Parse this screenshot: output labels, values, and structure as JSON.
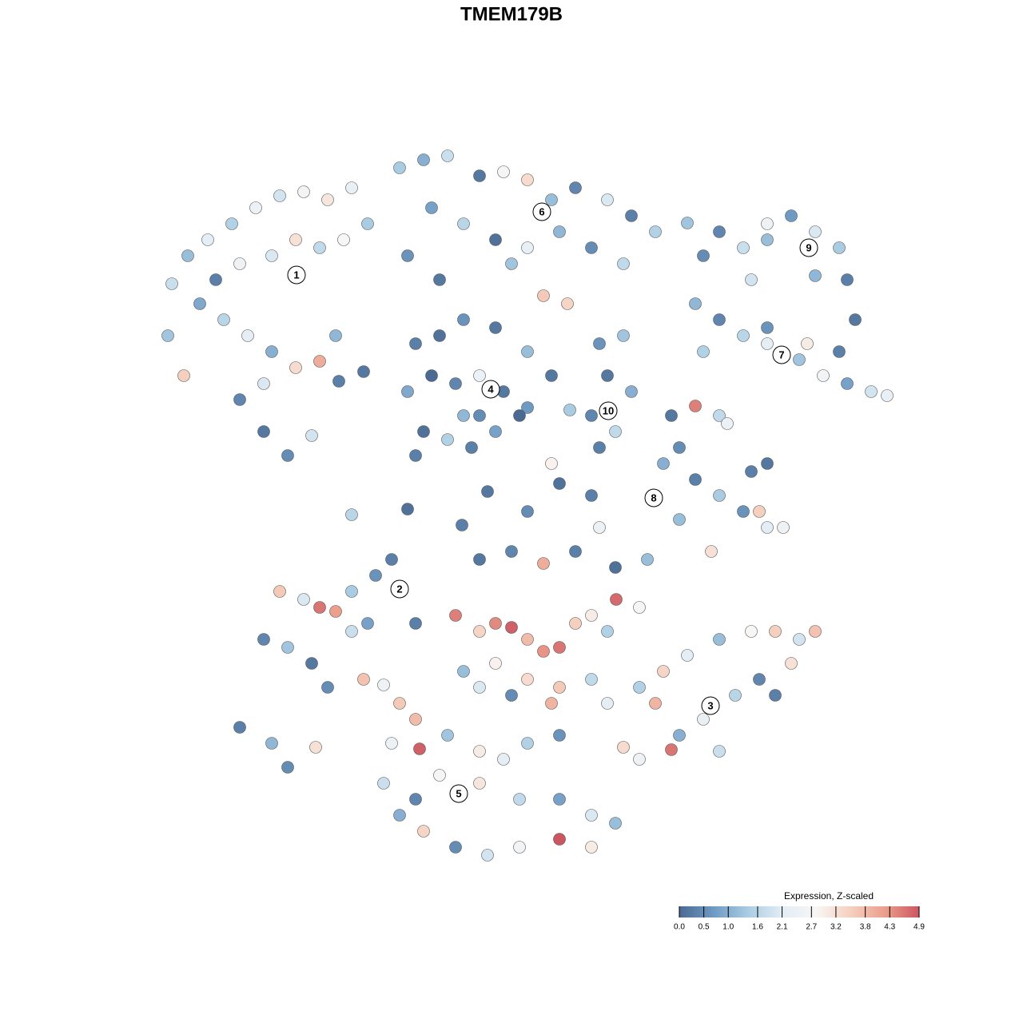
{
  "chart_data": {
    "type": "scatter",
    "title": "TMEM179B",
    "points": [
      {
        "x": -42.5,
        "y": 28.5,
        "value": 1.8
      },
      {
        "x": -40.5,
        "y": 32,
        "value": 1.2
      },
      {
        "x": -38,
        "y": 34,
        "value": 2.2
      },
      {
        "x": -35,
        "y": 36,
        "value": 1.5
      },
      {
        "x": -32,
        "y": 38,
        "value": 2.4
      },
      {
        "x": -29,
        "y": 39.5,
        "value": 1.9
      },
      {
        "x": -26,
        "y": 40,
        "value": 2.6
      },
      {
        "x": -23,
        "y": 39,
        "value": 3.1
      },
      {
        "x": -20,
        "y": 40.5,
        "value": 2.3
      },
      {
        "x": -34,
        "y": 31,
        "value": 2.5
      },
      {
        "x": -30,
        "y": 32,
        "value": 2.0
      },
      {
        "x": -27,
        "y": 34,
        "value": 3.2
      },
      {
        "x": -24,
        "y": 33,
        "value": 1.7
      },
      {
        "x": -21,
        "y": 34,
        "value": 2.8
      },
      {
        "x": -18,
        "y": 36,
        "value": 1.4
      },
      {
        "x": -39,
        "y": 26,
        "value": 0.9
      },
      {
        "x": -36,
        "y": 24,
        "value": 1.6
      },
      {
        "x": -33,
        "y": 22,
        "value": 2.2
      },
      {
        "x": -30,
        "y": 20,
        "value": 1.0
      },
      {
        "x": -27,
        "y": 18,
        "value": 3.3
      },
      {
        "x": -24,
        "y": 18.8,
        "value": 4.0
      },
      {
        "x": -31,
        "y": 16,
        "value": 2.0
      },
      {
        "x": -34,
        "y": 14,
        "value": 0.4
      },
      {
        "x": -31,
        "y": 10,
        "value": 0.2
      },
      {
        "x": -28,
        "y": 7,
        "value": 0.5
      },
      {
        "x": -25,
        "y": 9.5,
        "value": 1.9
      },
      {
        "x": -41,
        "y": 17,
        "value": 3.5
      },
      {
        "x": -43,
        "y": 22,
        "value": 1.3
      },
      {
        "x": -37,
        "y": 29,
        "value": 0.3
      },
      {
        "x": -22,
        "y": 22,
        "value": 1.1
      },
      {
        "x": -14,
        "y": 43,
        "value": 1.4
      },
      {
        "x": -11,
        "y": 44,
        "value": 1.0
      },
      {
        "x": -8,
        "y": 44.5,
        "value": 1.8
      },
      {
        "x": -4,
        "y": 42,
        "value": 0.2
      },
      {
        "x": -1,
        "y": 42.5,
        "value": 2.7
      },
      {
        "x": 2,
        "y": 41.5,
        "value": 3.3
      },
      {
        "x": 5,
        "y": 39,
        "value": 1.2
      },
      {
        "x": 8,
        "y": 40.5,
        "value": 0.4
      },
      {
        "x": 12,
        "y": 39,
        "value": 2.0
      },
      {
        "x": 15,
        "y": 37,
        "value": 0.3
      },
      {
        "x": 18,
        "y": 35,
        "value": 1.5
      },
      {
        "x": -10,
        "y": 38,
        "value": 0.8
      },
      {
        "x": -6,
        "y": 36,
        "value": 1.6
      },
      {
        "x": -2,
        "y": 34,
        "value": 0.1
      },
      {
        "x": 2,
        "y": 33,
        "value": 2.3
      },
      {
        "x": 6,
        "y": 35,
        "value": 1.1
      },
      {
        "x": 10,
        "y": 33,
        "value": 0.5
      },
      {
        "x": 14,
        "y": 31,
        "value": 1.7
      },
      {
        "x": -13,
        "y": 32,
        "value": 0.6
      },
      {
        "x": -9,
        "y": 29,
        "value": 0.2
      },
      {
        "x": 0,
        "y": 31,
        "value": 1.3
      },
      {
        "x": 7,
        "y": 26,
        "value": 3.4
      },
      {
        "x": 4,
        "y": 27,
        "value": 3.6
      },
      {
        "x": -12,
        "y": 21,
        "value": 0.3
      },
      {
        "x": -9,
        "y": 22,
        "value": 0.1
      },
      {
        "x": -6,
        "y": 24,
        "value": 0.6
      },
      {
        "x": -2,
        "y": 23,
        "value": 0.2
      },
      {
        "x": 2,
        "y": 20,
        "value": 1.2
      },
      {
        "x": -13,
        "y": 15,
        "value": 0.9
      },
      {
        "x": -10,
        "y": 17,
        "value": 0.0
      },
      {
        "x": -7,
        "y": 16,
        "value": 0.4
      },
      {
        "x": -4,
        "y": 17,
        "value": 2.4
      },
      {
        "x": -1,
        "y": 15,
        "value": 0.2
      },
      {
        "x": 2,
        "y": 13,
        "value": 0.7
      },
      {
        "x": -11,
        "y": 10,
        "value": 0.1
      },
      {
        "x": -8,
        "y": 9,
        "value": 1.5
      },
      {
        "x": -5,
        "y": 8,
        "value": 0.3
      },
      {
        "x": -2,
        "y": 10,
        "value": 0.8
      },
      {
        "x": 1,
        "y": 12,
        "value": 0.0
      },
      {
        "x": -4,
        "y": 12,
        "value": 0.5
      },
      {
        "x": -12,
        "y": 7,
        "value": 0.3
      },
      {
        "x": -6,
        "y": 12,
        "value": 1.1
      },
      {
        "x": 5,
        "y": 17,
        "value": 0.2
      },
      {
        "x": 11,
        "y": 21,
        "value": 0.6
      },
      {
        "x": 14,
        "y": 22,
        "value": 1.3
      },
      {
        "x": 12,
        "y": 17,
        "value": 0.2
      },
      {
        "x": 15,
        "y": 15,
        "value": 1.0
      },
      {
        "x": 10,
        "y": 12,
        "value": 0.4
      },
      {
        "x": 13,
        "y": 10,
        "value": 1.7
      },
      {
        "x": 11,
        "y": 8,
        "value": 0.3
      },
      {
        "x": 7.3,
        "y": 12.7,
        "value": 1.4
      },
      {
        "x": 26,
        "y": 35,
        "value": 0.4
      },
      {
        "x": 29,
        "y": 33,
        "value": 1.8
      },
      {
        "x": 32,
        "y": 34,
        "value": 1.2
      },
      {
        "x": 35,
        "y": 37,
        "value": 0.7
      },
      {
        "x": 38,
        "y": 35,
        "value": 2.0
      },
      {
        "x": 41,
        "y": 33,
        "value": 1.4
      },
      {
        "x": 42,
        "y": 29,
        "value": 0.3
      },
      {
        "x": 38,
        "y": 29.5,
        "value": 1.1
      },
      {
        "x": 32,
        "y": 36,
        "value": 2.5
      },
      {
        "x": 24,
        "y": 32,
        "value": 0.5
      },
      {
        "x": 43,
        "y": 24,
        "value": 0.2
      },
      {
        "x": 30,
        "y": 29,
        "value": 1.9
      },
      {
        "x": 23,
        "y": 26,
        "value": 1.1
      },
      {
        "x": 26,
        "y": 24,
        "value": 0.4
      },
      {
        "x": 29,
        "y": 22,
        "value": 1.6
      },
      {
        "x": 32,
        "y": 21,
        "value": 2.2
      },
      {
        "x": 36,
        "y": 19,
        "value": 1.3
      },
      {
        "x": 39,
        "y": 17,
        "value": 2.6
      },
      {
        "x": 42,
        "y": 16,
        "value": 0.8
      },
      {
        "x": 45,
        "y": 15,
        "value": 1.9
      },
      {
        "x": 47,
        "y": 14.5,
        "value": 2.3
      },
      {
        "x": 37,
        "y": 21,
        "value": 3.0
      },
      {
        "x": 32,
        "y": 23,
        "value": 0.6
      },
      {
        "x": 24,
        "y": 20,
        "value": 1.5
      },
      {
        "x": 41,
        "y": 20,
        "value": 0.3
      },
      {
        "x": 20,
        "y": 12,
        "value": 0.2
      },
      {
        "x": 23,
        "y": 13.2,
        "value": 4.5
      },
      {
        "x": 26,
        "y": 12,
        "value": 1.7
      },
      {
        "x": 27,
        "y": 11,
        "value": 2.4
      },
      {
        "x": 21,
        "y": 8,
        "value": 0.5
      },
      {
        "x": 19,
        "y": 6,
        "value": 1.0
      },
      {
        "x": 23,
        "y": 4,
        "value": 0.3
      },
      {
        "x": 26,
        "y": 2,
        "value": 1.4
      },
      {
        "x": 29,
        "y": 0,
        "value": 0.6
      },
      {
        "x": 32,
        "y": -2,
        "value": 2.1
      },
      {
        "x": 31,
        "y": 0,
        "value": 3.5
      },
      {
        "x": 25,
        "y": -5,
        "value": 3.2
      },
      {
        "x": 30,
        "y": 5,
        "value": 0.3
      },
      {
        "x": 32,
        "y": 6,
        "value": 0.2
      },
      {
        "x": 21,
        "y": -1,
        "value": 1.2
      },
      {
        "x": 34,
        "y": -2,
        "value": 2.5
      },
      {
        "x": -29,
        "y": -10,
        "value": 3.6
      },
      {
        "x": -26,
        "y": -11,
        "value": 2.0
      },
      {
        "x": -24,
        "y": -12,
        "value": 4.6
      },
      {
        "x": -22,
        "y": -12.5,
        "value": 4.2
      },
      {
        "x": -20,
        "y": -10,
        "value": 1.4
      },
      {
        "x": -17,
        "y": -8,
        "value": 0.6
      },
      {
        "x": -15,
        "y": -6,
        "value": 0.3
      },
      {
        "x": -31,
        "y": -16,
        "value": 0.4
      },
      {
        "x": -28,
        "y": -17,
        "value": 1.3
      },
      {
        "x": -25,
        "y": -19,
        "value": 0.2
      },
      {
        "x": -23,
        "y": -22,
        "value": 0.5
      },
      {
        "x": -20,
        "y": -15,
        "value": 1.8
      },
      {
        "x": -18,
        "y": -14,
        "value": 0.8
      },
      {
        "x": -18.5,
        "y": -21,
        "value": 3.7
      },
      {
        "x": -16,
        "y": -21.7,
        "value": 2.5
      },
      {
        "x": -34,
        "y": -27,
        "value": 0.3
      },
      {
        "x": -30,
        "y": -29,
        "value": 1.1
      },
      {
        "x": -28,
        "y": -32,
        "value": 0.5
      },
      {
        "x": -24.5,
        "y": -29.5,
        "value": 3.2
      },
      {
        "x": -12,
        "y": -14,
        "value": 0.3
      },
      {
        "x": 16,
        "y": -22,
        "value": 1.5
      },
      {
        "x": 19,
        "y": -20,
        "value": 3.4
      },
      {
        "x": 22,
        "y": -18,
        "value": 2.2
      },
      {
        "x": 26,
        "y": -16,
        "value": 1.2
      },
      {
        "x": 30,
        "y": -15,
        "value": 2.8
      },
      {
        "x": 33,
        "y": -15,
        "value": 3.5
      },
      {
        "x": 36,
        "y": -16,
        "value": 1.9
      },
      {
        "x": 38,
        "y": -15,
        "value": 3.7
      },
      {
        "x": 35,
        "y": -19,
        "value": 3.2
      },
      {
        "x": 31,
        "y": -21,
        "value": 0.4
      },
      {
        "x": 28,
        "y": -23,
        "value": 1.6
      },
      {
        "x": 24,
        "y": -26,
        "value": 2.3
      },
      {
        "x": 21,
        "y": -28,
        "value": 1.0
      },
      {
        "x": 20,
        "y": -29.8,
        "value": 4.6
      },
      {
        "x": 16,
        "y": -31,
        "value": 2.5
      },
      {
        "x": 14,
        "y": -29.5,
        "value": 3.3
      },
      {
        "x": 18,
        "y": -24,
        "value": 3.9
      },
      {
        "x": 33,
        "y": -23,
        "value": 0.3
      },
      {
        "x": 26,
        "y": -30,
        "value": 1.8
      },
      {
        "x": -14,
        "y": -24,
        "value": 3.6
      },
      {
        "x": -12,
        "y": -26,
        "value": 3.8
      },
      {
        "x": -15,
        "y": -29,
        "value": 2.4
      },
      {
        "x": -11.5,
        "y": -29.7,
        "value": 4.8
      },
      {
        "x": -8,
        "y": -28,
        "value": 1.3
      },
      {
        "x": -4,
        "y": -30,
        "value": 3.0
      },
      {
        "x": -1,
        "y": -31,
        "value": 2.2
      },
      {
        "x": 2,
        "y": -29,
        "value": 1.5
      },
      {
        "x": 6,
        "y": -28,
        "value": 0.6
      },
      {
        "x": -16,
        "y": -34,
        "value": 1.8
      },
      {
        "x": -12,
        "y": -36,
        "value": 0.4
      },
      {
        "x": -9,
        "y": -33,
        "value": 2.7
      },
      {
        "x": -4,
        "y": -34,
        "value": 3.1
      },
      {
        "x": 1,
        "y": -36,
        "value": 1.7
      },
      {
        "x": 6,
        "y": -36,
        "value": 0.8
      },
      {
        "x": 10,
        "y": -38,
        "value": 2.0
      },
      {
        "x": 13,
        "y": -39,
        "value": 1.2
      },
      {
        "x": -11,
        "y": -40,
        "value": 3.4
      },
      {
        "x": -7,
        "y": -42,
        "value": 0.5
      },
      {
        "x": -3,
        "y": -43,
        "value": 1.9
      },
      {
        "x": 1,
        "y": -42,
        "value": 2.6
      },
      {
        "x": 6,
        "y": -41,
        "value": 4.9
      },
      {
        "x": 10,
        "y": -42,
        "value": 3.0
      },
      {
        "x": -14,
        "y": -38,
        "value": 1.0
      },
      {
        "x": -4,
        "y": -6,
        "value": 0.2
      },
      {
        "x": 0,
        "y": -5,
        "value": 0.4
      },
      {
        "x": 4,
        "y": -6.5,
        "value": 4.0
      },
      {
        "x": 8,
        "y": -5,
        "value": 0.3
      },
      {
        "x": 13,
        "y": -7,
        "value": 0.1
      },
      {
        "x": 17,
        "y": -6,
        "value": 1.2
      },
      {
        "x": -7,
        "y": -13,
        "value": 4.5
      },
      {
        "x": -4,
        "y": -15,
        "value": 3.4
      },
      {
        "x": -2,
        "y": -14,
        "value": 4.4
      },
      {
        "x": 0,
        "y": -14.5,
        "value": 4.8
      },
      {
        "x": 2,
        "y": -16,
        "value": 3.8
      },
      {
        "x": 4,
        "y": -17.5,
        "value": 4.3
      },
      {
        "x": 6,
        "y": -17,
        "value": 4.6
      },
      {
        "x": 8,
        "y": -14,
        "value": 3.5
      },
      {
        "x": 10,
        "y": -13,
        "value": 3.0
      },
      {
        "x": 13.1,
        "y": -11,
        "value": 4.7
      },
      {
        "x": 12,
        "y": -15,
        "value": 1.5
      },
      {
        "x": 16,
        "y": -12,
        "value": 2.7
      },
      {
        "x": -6,
        "y": -20,
        "value": 1.2
      },
      {
        "x": -2,
        "y": -19,
        "value": 2.9
      },
      {
        "x": 2,
        "y": -21,
        "value": 3.3
      },
      {
        "x": 6,
        "y": -22,
        "value": 3.6
      },
      {
        "x": 10,
        "y": -21,
        "value": 1.7
      },
      {
        "x": 12,
        "y": -24,
        "value": 2.2
      },
      {
        "x": 5,
        "y": -24,
        "value": 3.9
      },
      {
        "x": 0,
        "y": -23,
        "value": 0.5
      },
      {
        "x": -4,
        "y": -22,
        "value": 2.0
      },
      {
        "x": -20,
        "y": -0.4,
        "value": 1.6
      },
      {
        "x": -13,
        "y": 0.3,
        "value": 0.1
      },
      {
        "x": -6.2,
        "y": -1.7,
        "value": 0.3
      },
      {
        "x": -3,
        "y": 2.5,
        "value": 0.2
      },
      {
        "x": 2,
        "y": 0,
        "value": 0.5
      },
      {
        "x": 6,
        "y": 3.5,
        "value": 0.1
      },
      {
        "x": 11,
        "y": -2,
        "value": 2.4
      },
      {
        "x": 10,
        "y": 2,
        "value": 0.3
      },
      {
        "x": 5,
        "y": 6,
        "value": 2.9
      },
      {
        "x": 22,
        "y": 36.1,
        "value": 1.3
      },
      {
        "x": -18.5,
        "y": 17.5,
        "value": 0.2
      },
      {
        "x": -21.6,
        "y": 16.3,
        "value": 0.3
      }
    ],
    "cluster_labels": [
      {
        "label": "1",
        "x": -26.9,
        "y": 29.6
      },
      {
        "label": "2",
        "x": -14,
        "y": -9.7
      },
      {
        "label": "3",
        "x": 24.9,
        "y": -24.3
      },
      {
        "label": "4",
        "x": -2.6,
        "y": 15.3
      },
      {
        "label": "5",
        "x": -6.6,
        "y": -35.3
      },
      {
        "label": "6",
        "x": 3.8,
        "y": 37.5
      },
      {
        "label": "7",
        "x": 33.8,
        "y": 19.6
      },
      {
        "label": "8",
        "x": 17.8,
        "y": 1.7
      },
      {
        "label": "9",
        "x": 37.2,
        "y": 33
      },
      {
        "label": "10",
        "x": 12.1,
        "y": 12.6
      }
    ],
    "colorbar": {
      "title": "Expression, Z-scaled",
      "range": [
        0,
        4.9
      ],
      "colors": [
        "#4b6a93",
        "#6f9ac3",
        "#a9cce3",
        "#e2edf5",
        "#f8f6f5",
        "#f6d0bf",
        "#eb9f8c",
        "#cc5561"
      ],
      "ticks": [
        {
          "value": 0,
          "label": "0.0"
        },
        0.5,
        {
          "value": 1,
          "label": "1.0"
        },
        1.6,
        2.1,
        2.7,
        3.2,
        3.8,
        4.3,
        4.9
      ]
    }
  }
}
